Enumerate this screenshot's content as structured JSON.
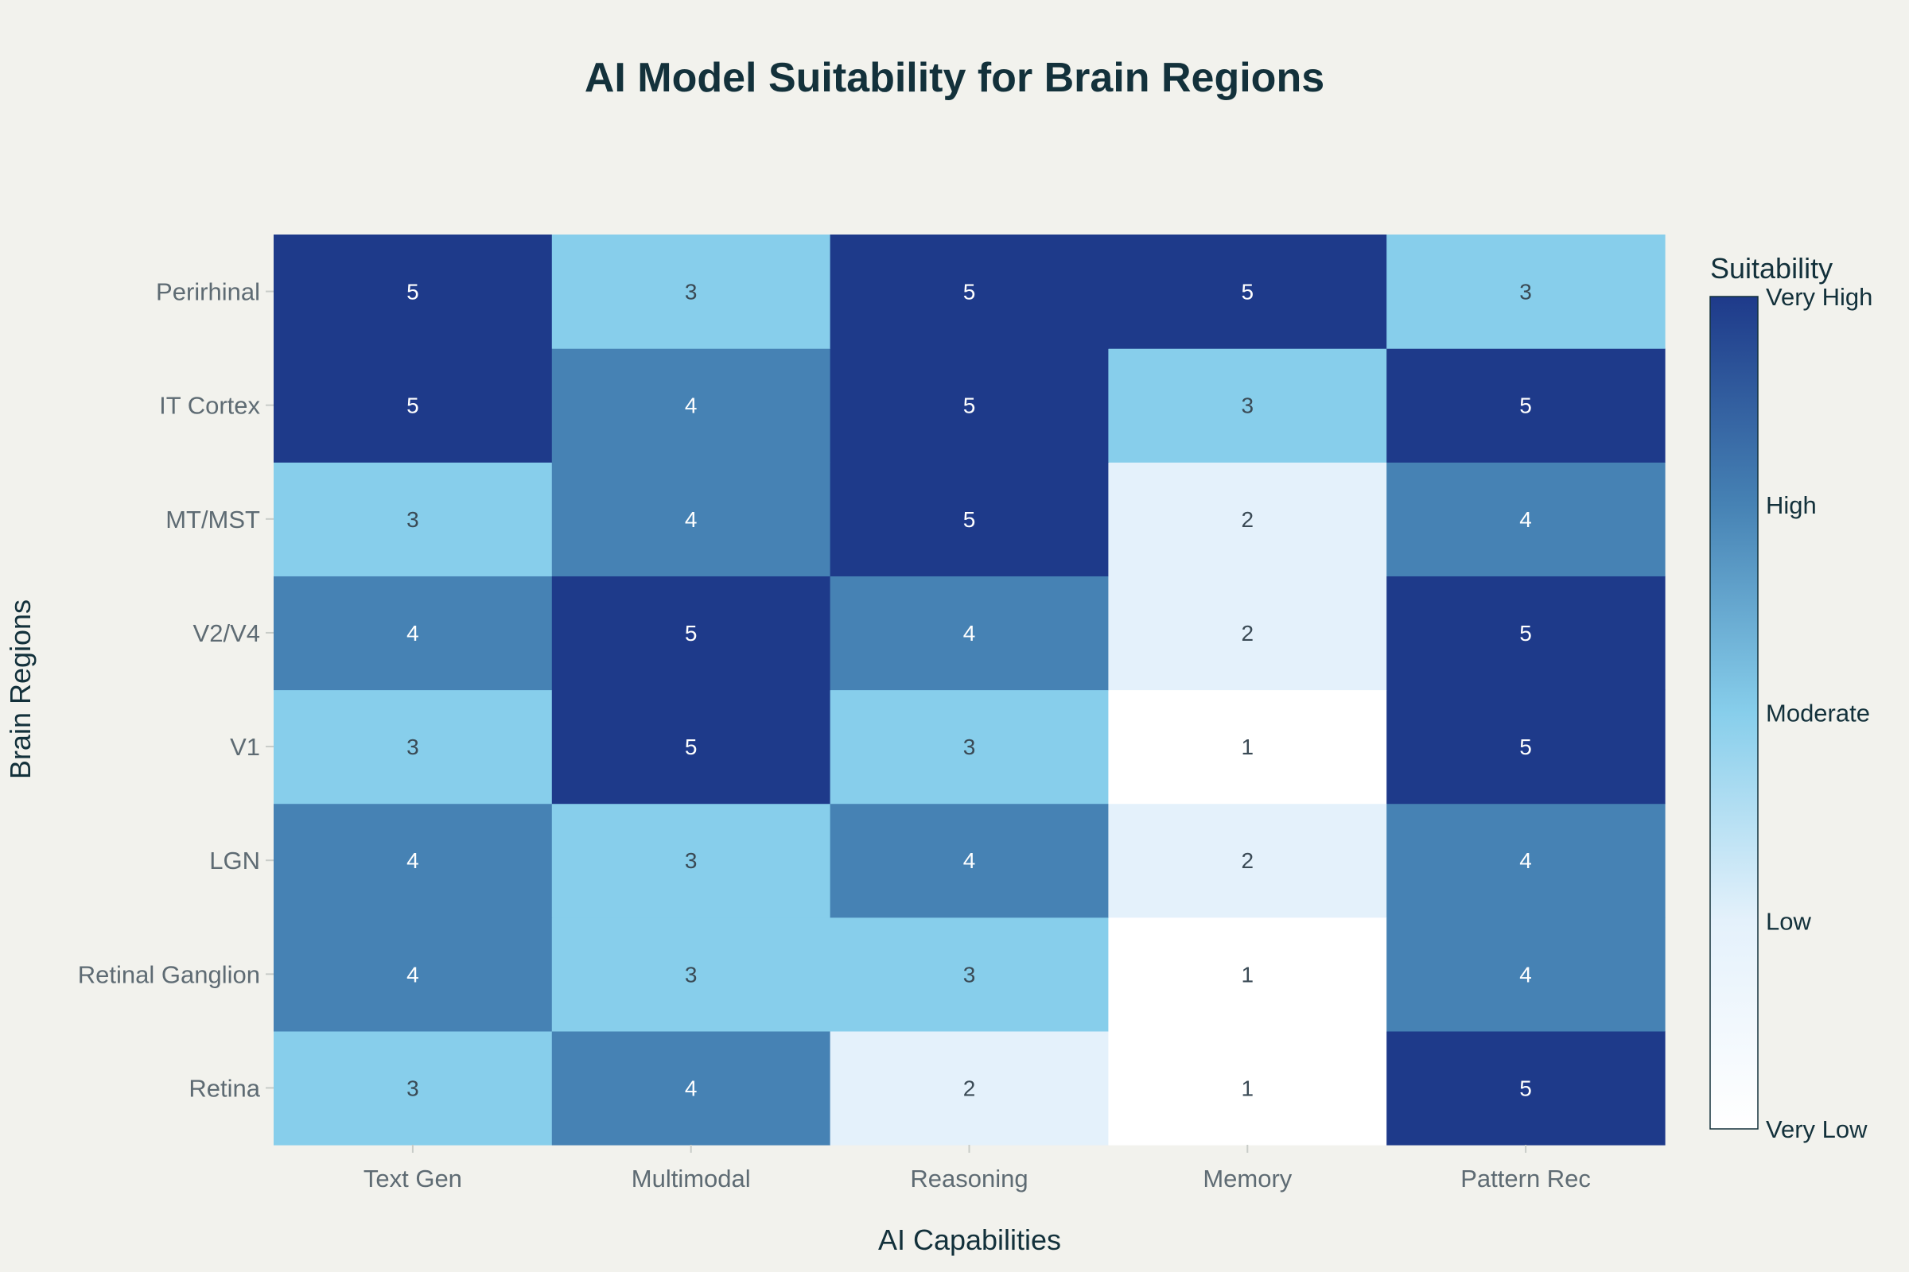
{
  "chart_data": {
    "type": "heatmap",
    "title": "AI Model Suitability for Brain Regions",
    "xlabel": "AI Capabilities",
    "ylabel": "Brain Regions",
    "x_categories": [
      "Text Gen",
      "Multimodal",
      "Reasoning",
      "Memory",
      "Pattern Rec"
    ],
    "y_categories": [
      "Retina",
      "Retinal Ganglion",
      "LGN",
      "V1",
      "V2/V4",
      "MT/MST",
      "IT Cortex",
      "Perirhinal"
    ],
    "values": [
      [
        3,
        4,
        2,
        1,
        5
      ],
      [
        4,
        3,
        3,
        1,
        4
      ],
      [
        4,
        3,
        4,
        2,
        4
      ],
      [
        3,
        5,
        3,
        1,
        5
      ],
      [
        4,
        5,
        4,
        2,
        5
      ],
      [
        3,
        4,
        5,
        2,
        4
      ],
      [
        5,
        4,
        5,
        3,
        5
      ],
      [
        5,
        3,
        5,
        5,
        3
      ]
    ],
    "zrange": [
      1,
      5
    ],
    "cell_labels": true,
    "colorscale": [
      [
        1,
        "#ffffff"
      ],
      [
        2,
        "#e4f1fb"
      ],
      [
        3,
        "#87ceeb"
      ],
      [
        4,
        "#4682b4"
      ],
      [
        5,
        "#1e3a8a"
      ]
    ],
    "colorbar": {
      "title": "Suitability",
      "tick_values": [
        1,
        2,
        3,
        4,
        5
      ],
      "tick_labels": [
        "Very Low",
        "Low",
        "Moderate",
        "High",
        "Very High"
      ]
    },
    "text_colors": {
      "light": "#ffffff",
      "dark": "#3a4a55"
    },
    "axis_text_color": "#5e6b73",
    "title_color": "#13313b",
    "background": "#f2f2ed"
  }
}
